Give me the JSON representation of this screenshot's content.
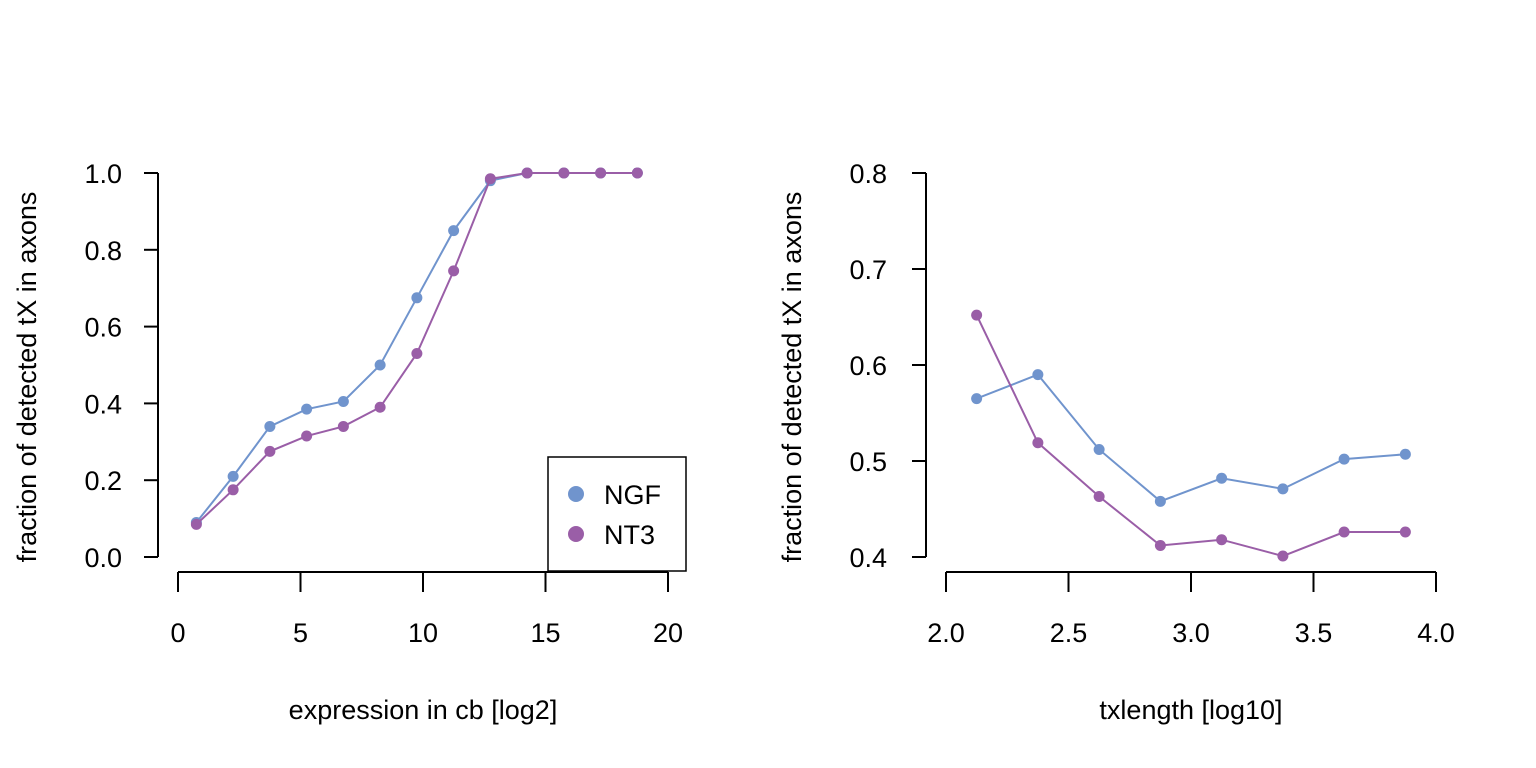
{
  "chart_data": [
    {
      "type": "line",
      "title": "",
      "xlabel": "expression in cb [log2]",
      "ylabel": "fraction of detected tX in axons",
      "xlim": [
        0,
        20
      ],
      "ylim": [
        0,
        1
      ],
      "xticks": [
        "0",
        "5",
        "10",
        "15",
        "20"
      ],
      "yticks": [
        "0.0",
        "0.2",
        "0.4",
        "0.6",
        "0.8",
        "1.0"
      ],
      "x": [
        0.75,
        2.25,
        3.75,
        5.25,
        6.75,
        8.25,
        9.75,
        11.25,
        12.75,
        14.25,
        15.75,
        17.25,
        18.75
      ],
      "series": [
        {
          "name": "NGF",
          "color": "#7094cd",
          "values": [
            0.09,
            0.21,
            0.34,
            0.385,
            0.405,
            0.5,
            0.675,
            0.85,
            0.98,
            1.0,
            1.0,
            1.0,
            1.0
          ]
        },
        {
          "name": "NT3",
          "color": "#9a5ea7",
          "values": [
            0.085,
            0.175,
            0.275,
            0.315,
            0.34,
            0.39,
            0.53,
            0.745,
            0.985,
            1.0,
            1.0,
            1.0,
            1.0
          ]
        }
      ],
      "legend": {
        "position": "bottom-right",
        "entries": [
          "NGF",
          "NT3"
        ]
      }
    },
    {
      "type": "line",
      "title": "",
      "xlabel": "txlength [log10]",
      "ylabel": "fraction of detected tX in axons",
      "xlim": [
        2.0,
        4.0
      ],
      "ylim": [
        0.4,
        0.8
      ],
      "xticks": [
        "2.0",
        "2.5",
        "3.0",
        "3.5",
        "4.0"
      ],
      "yticks": [
        "0.4",
        "0.5",
        "0.6",
        "0.7",
        "0.8"
      ],
      "x": [
        2.125,
        2.375,
        2.625,
        2.875,
        3.125,
        3.375,
        3.625,
        3.875
      ],
      "series": [
        {
          "name": "NGF",
          "color": "#7094cd",
          "values": [
            0.565,
            0.59,
            0.512,
            0.458,
            0.482,
            0.471,
            0.502,
            0.507
          ]
        },
        {
          "name": "NT3",
          "color": "#9a5ea7",
          "values": [
            0.652,
            0.519,
            0.463,
            0.412,
            0.418,
            0.401,
            0.426,
            0.426
          ]
        }
      ]
    }
  ]
}
